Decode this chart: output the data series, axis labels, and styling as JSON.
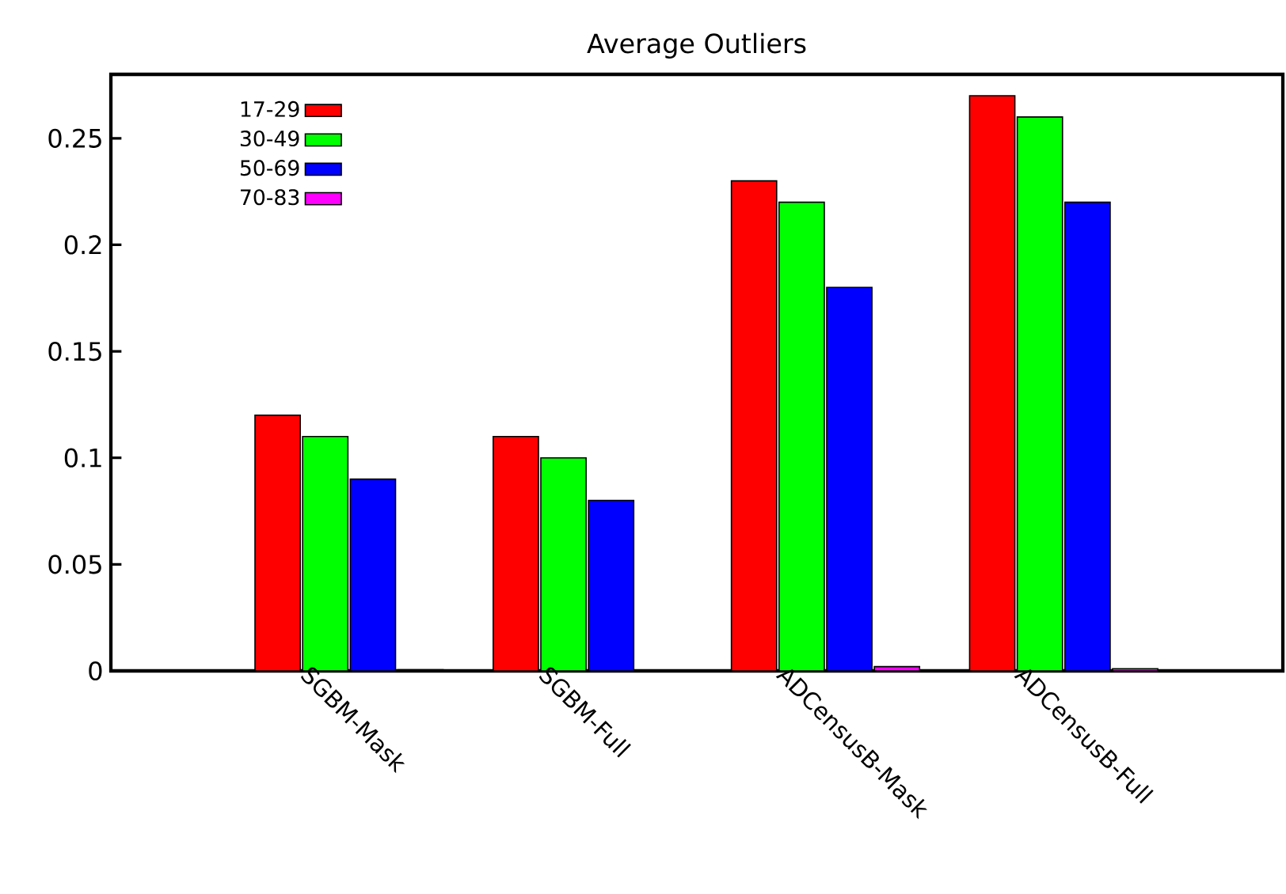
{
  "chart_data": {
    "type": "bar",
    "title": "Average Outliers",
    "categories": [
      "SGBM-Mask",
      "SGBM-Full",
      "ADCensusB-Mask",
      "ADCensusB-Full"
    ],
    "series": [
      {
        "name": "17-29",
        "color": "#ff0000",
        "values": [
          0.12,
          0.11,
          0.23,
          0.27
        ]
      },
      {
        "name": "30-49",
        "color": "#00ff00",
        "values": [
          0.11,
          0.1,
          0.22,
          0.26
        ]
      },
      {
        "name": "50-69",
        "color": "#0000ff",
        "values": [
          0.09,
          0.08,
          0.18,
          0.22
        ]
      },
      {
        "name": "70-83",
        "color": "#ff00ff",
        "values": [
          0.0005,
          null,
          0.002,
          0.001
        ]
      }
    ],
    "ylim": [
      0,
      0.28
    ],
    "yticks": [
      0,
      0.05,
      0.1,
      0.15,
      0.2,
      0.25
    ],
    "legend": "top left"
  }
}
